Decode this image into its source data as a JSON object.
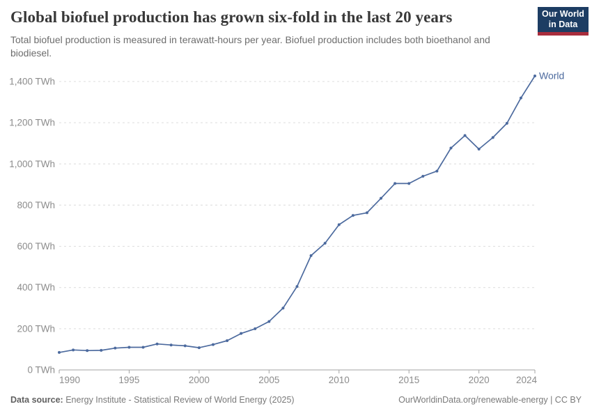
{
  "header": {
    "title": "Global biofuel production has grown six-fold in the last 20 years",
    "subtitle": "Total biofuel production is measured in terawatt-hours per year. Biofuel production includes both bioethanol and biodiesel.",
    "logo": {
      "line1": "Our World",
      "line2": "in Data",
      "bg_color": "#1d3d63",
      "bar_color": "#a82d3c"
    }
  },
  "chart_data": {
    "type": "line",
    "title": "Global biofuel production has grown six-fold in the last 20 years",
    "unit": "TWh",
    "xlim": [
      1990,
      2024
    ],
    "ylim": [
      0,
      1400
    ],
    "grid": "horizontal-dashed",
    "legend_position": "end-of-line",
    "yticks": [
      0,
      200,
      400,
      600,
      800,
      1000,
      1200,
      1400
    ],
    "ytick_labels": [
      "0 TWh",
      "200 TWh",
      "400 TWh",
      "600 TWh",
      "800 TWh",
      "1,000 TWh",
      "1,200 TWh",
      "1,400 TWh"
    ],
    "xticks": [
      1990,
      1995,
      2000,
      2005,
      2010,
      2015,
      2020,
      2024
    ],
    "xtick_labels": [
      "1990",
      "1995",
      "2000",
      "2005",
      "2010",
      "2015",
      "2020",
      "2024"
    ],
    "line_color": "#4c6a9e",
    "series": [
      {
        "name": "World",
        "x": [
          1990,
          1991,
          1992,
          1993,
          1994,
          1995,
          1996,
          1997,
          1998,
          1999,
          2000,
          2001,
          2002,
          2003,
          2004,
          2005,
          2006,
          2007,
          2008,
          2009,
          2010,
          2011,
          2012,
          2013,
          2014,
          2015,
          2016,
          2017,
          2018,
          2019,
          2020,
          2021,
          2022,
          2023,
          2024
        ],
        "values": [
          85,
          97,
          94,
          95,
          106,
          110,
          110,
          126,
          121,
          117,
          108,
          123,
          142,
          177,
          200,
          235,
          300,
          405,
          555,
          615,
          705,
          750,
          763,
          833,
          905,
          905,
          940,
          965,
          1077,
          1138,
          1072,
          1128,
          1197,
          1320,
          1427
        ]
      }
    ]
  },
  "footer": {
    "source_label": "Data source:",
    "source_text": " Energy Institute - Statistical Review of World Energy (2025)",
    "right_text": "OurWorldinData.org/renewable-energy | CC BY"
  }
}
